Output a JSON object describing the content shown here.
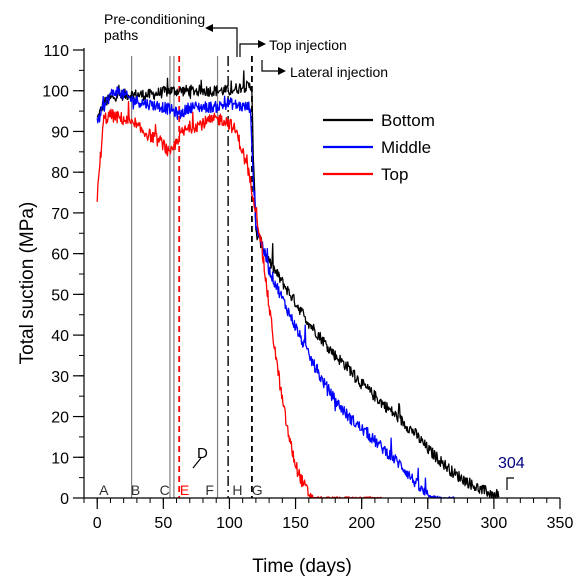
{
  "colors": {
    "bottom": "#000000",
    "middle": "#0000ff",
    "top": "#ff0000",
    "marker_label_e": "#ff0000",
    "end_label": "#00007f",
    "axis": "#000000",
    "ref_line": "#808080"
  },
  "chart_data": {
    "type": "line",
    "xlabel": "Time (days)",
    "ylabel": "Total suction (MPa)",
    "xlim": [
      -10,
      350
    ],
    "ylim": [
      0,
      110
    ],
    "x_ticks": [
      0,
      50,
      100,
      150,
      200,
      250,
      300,
      350
    ],
    "y_ticks": [
      0,
      10,
      20,
      30,
      40,
      50,
      60,
      70,
      80,
      90,
      100,
      110
    ],
    "grid": false,
    "legend_position": "top-right",
    "series": [
      {
        "name": "Bottom",
        "color_key": "bottom",
        "points": [
          [
            0,
            93
          ],
          [
            5,
            97
          ],
          [
            15,
            99
          ],
          [
            25,
            99
          ],
          [
            40,
            99
          ],
          [
            55,
            100
          ],
          [
            60,
            100
          ],
          [
            70,
            100
          ],
          [
            80,
            100
          ],
          [
            90,
            100
          ],
          [
            100,
            100
          ],
          [
            110,
            101
          ],
          [
            117,
            101
          ],
          [
            118,
            85
          ],
          [
            120,
            65
          ],
          [
            125,
            62
          ],
          [
            130,
            58
          ],
          [
            140,
            53
          ],
          [
            150,
            48
          ],
          [
            160,
            43
          ],
          [
            170,
            39
          ],
          [
            180,
            35
          ],
          [
            190,
            32
          ],
          [
            200,
            28
          ],
          [
            210,
            25
          ],
          [
            220,
            22
          ],
          [
            230,
            19
          ],
          [
            240,
            16
          ],
          [
            250,
            12
          ],
          [
            260,
            9
          ],
          [
            270,
            6
          ],
          [
            280,
            4
          ],
          [
            290,
            2
          ],
          [
            300,
            1
          ],
          [
            304,
            0.5
          ]
        ]
      },
      {
        "name": "Middle",
        "color_key": "middle",
        "points": [
          [
            0,
            92
          ],
          [
            5,
            96
          ],
          [
            10,
            99
          ],
          [
            15,
            100
          ],
          [
            25,
            98
          ],
          [
            35,
            97
          ],
          [
            50,
            96
          ],
          [
            58,
            95
          ],
          [
            62,
            94
          ],
          [
            70,
            96
          ],
          [
            80,
            96
          ],
          [
            90,
            96
          ],
          [
            100,
            97
          ],
          [
            110,
            96
          ],
          [
            116,
            96
          ],
          [
            117,
            85
          ],
          [
            120,
            67
          ],
          [
            125,
            62
          ],
          [
            130,
            56
          ],
          [
            140,
            49
          ],
          [
            150,
            42
          ],
          [
            160,
            35
          ],
          [
            170,
            29
          ],
          [
            180,
            24
          ],
          [
            190,
            20
          ],
          [
            200,
            17
          ],
          [
            210,
            14
          ],
          [
            220,
            11
          ],
          [
            230,
            8
          ],
          [
            240,
            4
          ],
          [
            245,
            2
          ],
          [
            250,
            0.5
          ],
          [
            260,
            0
          ],
          [
            270,
            0
          ]
        ]
      },
      {
        "name": "Top",
        "color_key": "top",
        "points": [
          [
            0,
            74
          ],
          [
            2,
            82
          ],
          [
            5,
            93
          ],
          [
            10,
            94
          ],
          [
            20,
            93
          ],
          [
            30,
            91
          ],
          [
            40,
            89
          ],
          [
            50,
            87
          ],
          [
            55,
            84
          ],
          [
            58,
            86
          ],
          [
            62,
            89
          ],
          [
            70,
            91
          ],
          [
            80,
            92
          ],
          [
            90,
            93
          ],
          [
            95,
            93
          ],
          [
            100,
            92
          ],
          [
            105,
            90
          ],
          [
            110,
            85
          ],
          [
            115,
            79
          ],
          [
            120,
            71
          ],
          [
            125,
            60
          ],
          [
            130,
            47
          ],
          [
            135,
            35
          ],
          [
            140,
            24
          ],
          [
            145,
            15
          ],
          [
            150,
            8
          ],
          [
            155,
            4
          ],
          [
            160,
            1
          ],
          [
            165,
            0
          ],
          [
            215,
            0
          ]
        ]
      }
    ],
    "legend": [
      "Bottom",
      "Middle",
      "Top"
    ],
    "reference_lines": [
      {
        "x": 26,
        "style": "solid"
      },
      {
        "x": 55,
        "style": "solid"
      },
      {
        "x": 58,
        "style": "solid"
      },
      {
        "x": 62,
        "style": "dashed",
        "color_key": "top"
      },
      {
        "x": 91,
        "style": "solid"
      },
      {
        "x": 99,
        "style": "dashdot"
      },
      {
        "x": 117,
        "style": "dashed"
      }
    ],
    "marker_labels": [
      {
        "text": "A",
        "x": 5
      },
      {
        "text": "B",
        "x": 29
      },
      {
        "text": "C",
        "x": 51
      },
      {
        "text": "E",
        "x": 66,
        "color_key": "marker_label_e"
      },
      {
        "text": "F",
        "x": 85
      },
      {
        "text": "H",
        "x": 106
      },
      {
        "text": "G",
        "x": 121
      }
    ],
    "annotations": {
      "pre_conditioning": "Pre-conditioning\npaths",
      "top_injection": "Top injection",
      "lateral_injection": "Lateral injection",
      "d_label": "D",
      "end_day": "304"
    }
  }
}
